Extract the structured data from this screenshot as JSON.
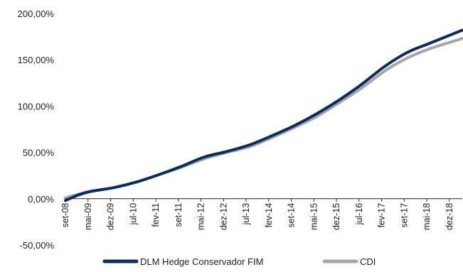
{
  "chart_data": {
    "type": "line",
    "title": "",
    "xlabel": "",
    "ylabel": "",
    "ylim": [
      -50,
      200
    ],
    "y_ticks": [
      -50,
      0,
      50,
      100,
      150,
      200
    ],
    "y_tick_labels": [
      "-50,00%",
      "0,00%",
      "50,00%",
      "100,00%",
      "150,00%",
      "200,00%"
    ],
    "x_tick_labels": [
      "set-08",
      "mai-09",
      "dez-09",
      "jul-10",
      "fev-11",
      "set-11",
      "mai-12",
      "dez-12",
      "jul-13",
      "fev-14",
      "set-14",
      "mai-15",
      "dez-15",
      "jul-16",
      "fev-17",
      "set-17",
      "mai-18",
      "dez-18"
    ],
    "x_months_per_tick": 7,
    "x_total_months": 123,
    "grid": false,
    "legend_position": "bottom",
    "series": [
      {
        "name": "DLM Hedge Conservador FIM",
        "color": "#0b2d5e",
        "months": [
          0,
          4,
          8,
          15,
          22,
          29,
          36,
          43,
          50,
          57,
          64,
          71,
          78,
          85,
          92,
          99,
          106,
          113,
          123
        ],
        "values": [
          -2,
          4,
          8,
          12,
          18,
          26,
          35,
          45,
          51,
          58,
          68,
          79,
          92,
          107,
          124,
          143,
          158,
          168,
          182
        ]
      },
      {
        "name": "CDI",
        "color": "#a6a6a6",
        "months": [
          0,
          4,
          8,
          15,
          22,
          29,
          36,
          43,
          50,
          57,
          64,
          71,
          78,
          85,
          92,
          99,
          106,
          113,
          123
        ],
        "values": [
          1,
          5,
          8,
          12,
          18,
          26,
          34,
          43,
          50,
          56,
          66,
          77,
          89,
          104,
          120,
          138,
          152,
          162,
          173
        ]
      }
    ]
  }
}
